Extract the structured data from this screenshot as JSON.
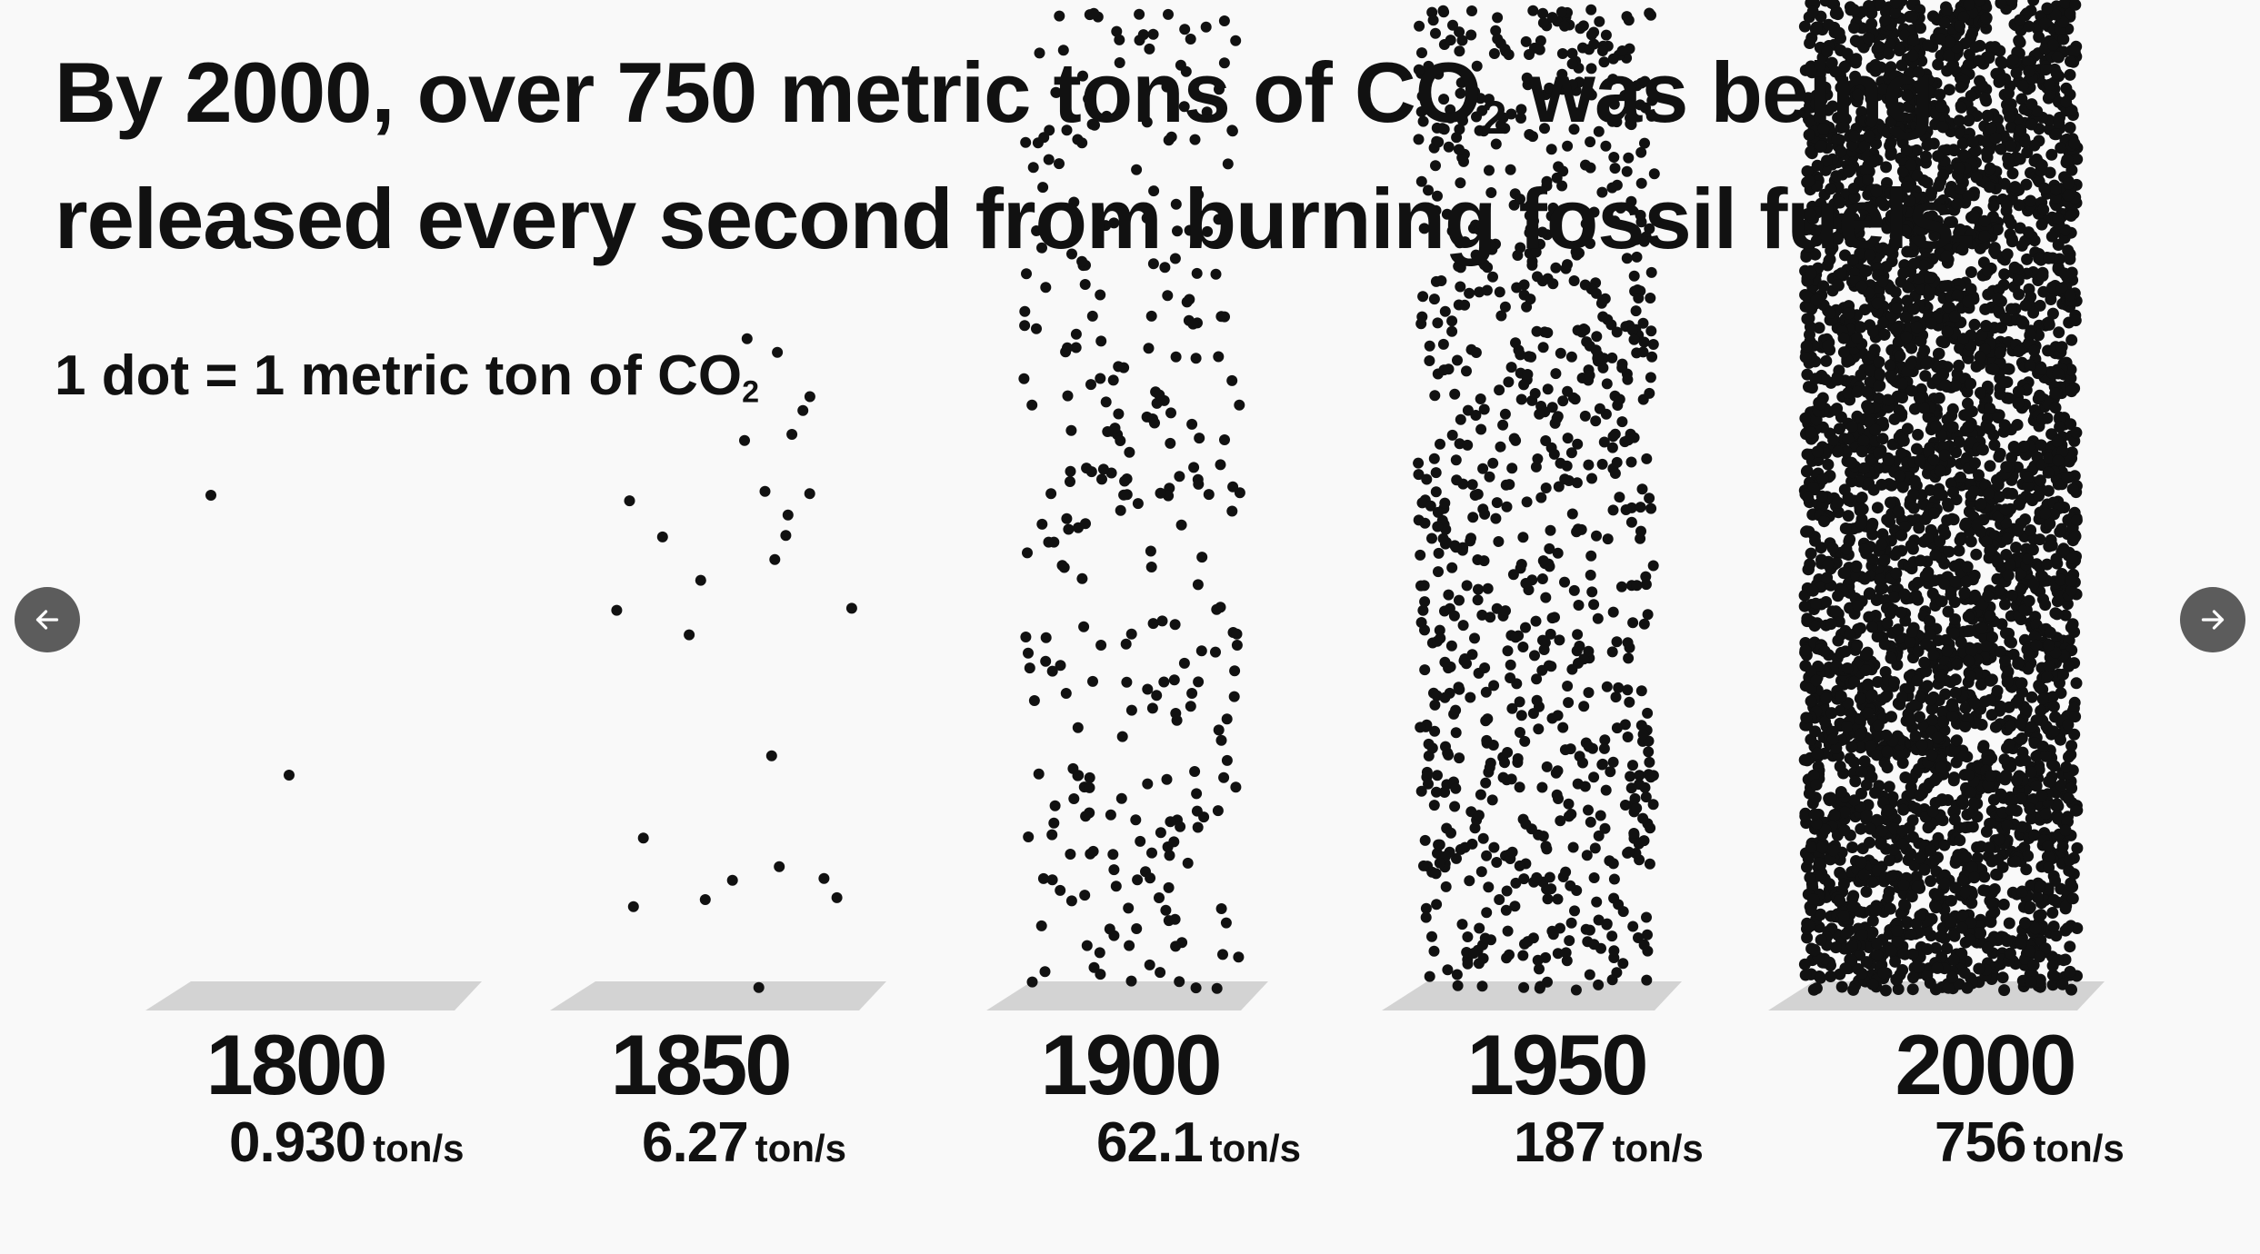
{
  "headline": {
    "line1_before": "By 2000, over 750 metric tons of CO",
    "line1_sub": "2",
    "line1_after": " was being",
    "line2": "released every second from burning fossil fuels."
  },
  "legend": {
    "text": "1 dot = 1 metric ton of CO",
    "sub": "2"
  },
  "nav": {
    "prev_icon": "arrow-left-icon",
    "next_icon": "arrow-right-icon",
    "button_color": "#5c5c5c"
  },
  "chart_data": {
    "type": "bar",
    "categories": [
      "1800",
      "1850",
      "1900",
      "1950",
      "2000"
    ],
    "values": [
      0.93,
      6.27,
      62.1,
      187,
      756
    ],
    "value_labels": [
      "0.930",
      "6.27",
      "62.1",
      "187",
      "756"
    ],
    "unit": "ton/s",
    "dot_color": "#111111",
    "platform_color": "#d3d3d3"
  }
}
